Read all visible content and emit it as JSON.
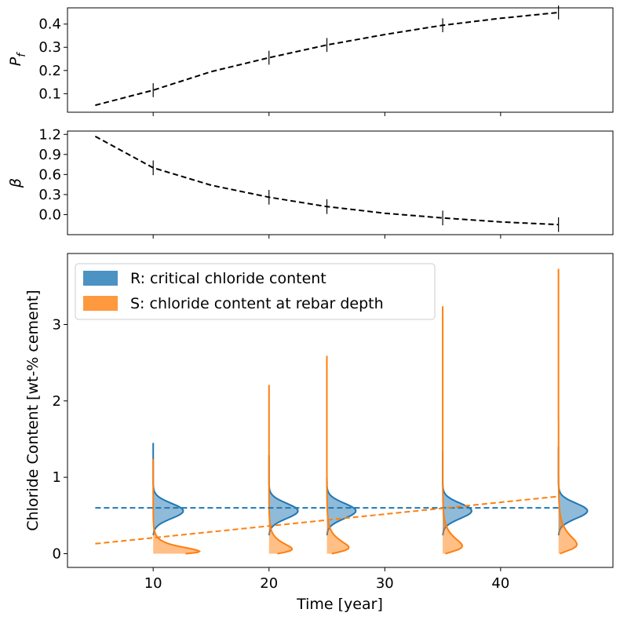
{
  "chart_data": [
    {
      "panel": "pf",
      "type": "line",
      "ylabel": "P",
      "ylabel_sub": "f",
      "xlim": [
        2.6,
        49.7
      ],
      "ylim": [
        0.02,
        0.47
      ],
      "yticks": [
        0.1,
        0.2,
        0.3,
        0.4
      ],
      "ytick_labels": [
        "0.1",
        "0.2",
        "0.3",
        "0.4"
      ],
      "xticks": [
        10,
        20,
        30,
        40
      ],
      "series": [
        {
          "x": [
            5,
            10,
            15,
            20,
            25,
            30,
            35,
            40,
            45
          ],
          "y": [
            0.05,
            0.115,
            0.195,
            0.255,
            0.31,
            0.355,
            0.395,
            0.425,
            0.45
          ],
          "color": "#000000",
          "style": "dashed"
        }
      ],
      "error_markers": {
        "x": [
          10,
          20,
          25,
          35,
          45
        ],
        "y": [
          0.115,
          0.255,
          0.31,
          0.395,
          0.45
        ],
        "half_height": 0.03
      }
    },
    {
      "panel": "beta",
      "type": "line",
      "ylabel": "β",
      "xlim": [
        2.6,
        49.7
      ],
      "ylim": [
        -0.3,
        1.25
      ],
      "yticks": [
        0.0,
        0.3,
        0.6,
        0.9,
        1.2
      ],
      "ytick_labels": [
        "0.0",
        "0.3",
        "0.6",
        "0.9",
        "1.2"
      ],
      "xticks": [
        10,
        20,
        30,
        40
      ],
      "series": [
        {
          "x": [
            5,
            10,
            15,
            20,
            25,
            30,
            35,
            40,
            45
          ],
          "y": [
            1.17,
            0.7,
            0.44,
            0.26,
            0.12,
            0.02,
            -0.05,
            -0.11,
            -0.15
          ],
          "color": "#000000",
          "style": "dashed"
        }
      ],
      "error_markers": {
        "x": [
          10,
          20,
          25,
          35,
          45
        ],
        "y": [
          0.7,
          0.26,
          0.12,
          -0.05,
          -0.15
        ],
        "half_height": 0.11
      }
    },
    {
      "panel": "chloride",
      "type": "area",
      "xlabel": "Time [year]",
      "ylabel": "Chloride Content [wt-% cement]",
      "xlim": [
        2.6,
        49.7
      ],
      "ylim": [
        -0.18,
        3.93
      ],
      "yticks": [
        0,
        1,
        2,
        3
      ],
      "ytick_labels": [
        "0",
        "1",
        "2",
        "3"
      ],
      "xticks": [
        10,
        20,
        30,
        40
      ],
      "xtick_labels": [
        "10",
        "20",
        "30",
        "40"
      ],
      "legend": {
        "placement": "upper-left",
        "entries": [
          {
            "label": "R: critical chloride content",
            "color": "#1f77b4"
          },
          {
            "label": "S: chloride content at rebar depth",
            "color": "#ff7f0e"
          }
        ]
      },
      "series": [
        {
          "name": "R mean",
          "x": [
            5,
            45
          ],
          "y": [
            0.6,
            0.6
          ],
          "color": "#1f77b4",
          "style": "dashed"
        },
        {
          "name": "S mean",
          "x": [
            5,
            45
          ],
          "y": [
            0.13,
            0.75
          ],
          "color": "#ff7f0e",
          "style": "dashed"
        }
      ],
      "distributions": [
        {
          "t": 10,
          "r_top": 1.45,
          "r_mode": 0.56,
          "r_width": 2.6,
          "s_top": 1.24,
          "s_mode": 0.03,
          "s_width": 4.0
        },
        {
          "t": 20,
          "r_top": 1.29,
          "r_mode": 0.56,
          "r_width": 2.5,
          "s_top": 2.21,
          "s_mode": 0.06,
          "s_width": 2.0
        },
        {
          "t": 25,
          "r_top": 1.37,
          "r_mode": 0.56,
          "r_width": 2.5,
          "s_top": 2.59,
          "s_mode": 0.08,
          "s_width": 1.9
        },
        {
          "t": 35,
          "r_top": 1.34,
          "r_mode": 0.56,
          "r_width": 2.5,
          "s_top": 3.24,
          "s_mode": 0.1,
          "s_width": 1.7
        },
        {
          "t": 45,
          "r_top": 1.4,
          "r_mode": 0.56,
          "r_width": 2.5,
          "s_top": 3.73,
          "s_mode": 0.12,
          "s_width": 1.6
        }
      ]
    }
  ],
  "colors": {
    "r": "#1f77b4",
    "s": "#ff7f0e",
    "axis": "#000000"
  }
}
